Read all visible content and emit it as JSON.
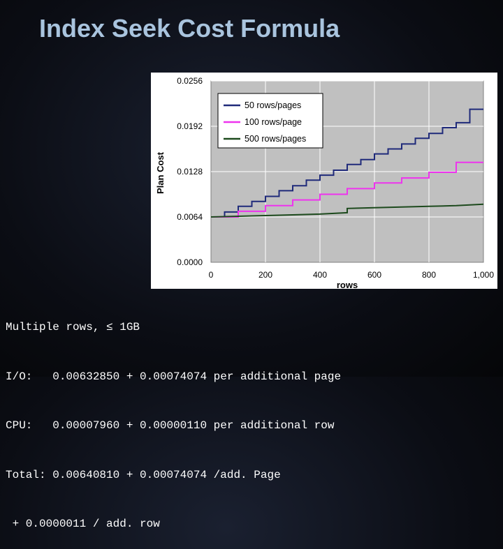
{
  "slide": {
    "title": "Index Seek Cost Formula"
  },
  "notes": {
    "lines": [
      "Multiple rows, ≤ 1GB",
      "I/O:   0.00632850 + 0.00074074 per additional page",
      "CPU:   0.00007960 + 0.00000110 per additional row",
      "Total: 0.00640810 + 0.00074074 /add. Page",
      " + 0.0000011 / add. row"
    ]
  },
  "chart_data": {
    "type": "line",
    "title": "",
    "xlabel": "rows",
    "ylabel": "Plan Cost",
    "xlim": [
      0,
      1000
    ],
    "ylim": [
      0,
      0.0256
    ],
    "x_ticks": [
      "0",
      "200",
      "400",
      "600",
      "800",
      "1,000"
    ],
    "y_ticks": [
      "0.0000",
      "0.0064",
      "0.0128",
      "0.0192",
      "0.0256"
    ],
    "grid": true,
    "legend_position": "top-left",
    "series": [
      {
        "name": "50 rows/pages",
        "color": "#1f2a7a",
        "x": [
          0,
          50,
          50,
          100,
          100,
          150,
          150,
          200,
          200,
          250,
          250,
          300,
          300,
          350,
          350,
          400,
          400,
          450,
          450,
          500,
          500,
          550,
          550,
          600,
          600,
          650,
          650,
          700,
          700,
          750,
          750,
          800,
          800,
          850,
          850,
          900,
          900,
          950,
          950,
          1000
        ],
        "y": [
          0.0064,
          0.0064,
          0.0071,
          0.0071,
          0.0079,
          0.0079,
          0.0086,
          0.0086,
          0.0093,
          0.0093,
          0.0101,
          0.0101,
          0.0108,
          0.0108,
          0.0116,
          0.0116,
          0.0123,
          0.0123,
          0.013,
          0.013,
          0.0138,
          0.0138,
          0.0145,
          0.0145,
          0.0153,
          0.0153,
          0.016,
          0.016,
          0.0167,
          0.0167,
          0.0175,
          0.0175,
          0.0182,
          0.0182,
          0.019,
          0.019,
          0.0197,
          0.0197,
          0.0216,
          0.0216
        ]
      },
      {
        "name": "100 rows/page",
        "color": "#ee33ee",
        "x": [
          0,
          100,
          100,
          200,
          200,
          300,
          300,
          400,
          400,
          500,
          500,
          600,
          600,
          700,
          700,
          800,
          800,
          900,
          900,
          1000
        ],
        "y": [
          0.0064,
          0.0064,
          0.0072,
          0.0072,
          0.008,
          0.008,
          0.0088,
          0.0088,
          0.0096,
          0.0096,
          0.0104,
          0.0104,
          0.0112,
          0.0112,
          0.0119,
          0.0119,
          0.0127,
          0.0127,
          0.0141,
          0.0141
        ]
      },
      {
        "name": "500 rows/pages",
        "color": "#1d4a1d",
        "x": [
          0,
          100,
          200,
          300,
          400,
          500,
          500,
          600,
          700,
          800,
          900,
          1000
        ],
        "y": [
          0.0064,
          0.0065,
          0.0066,
          0.0067,
          0.0068,
          0.007,
          0.0076,
          0.0077,
          0.0078,
          0.0079,
          0.008,
          0.0082
        ]
      }
    ]
  }
}
